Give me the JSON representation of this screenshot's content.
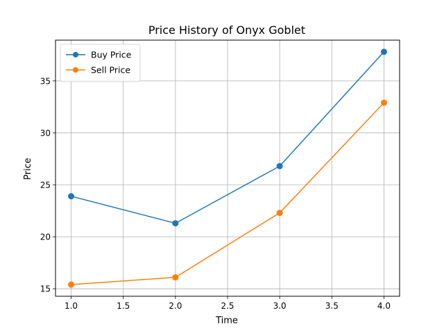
{
  "chart_data": {
    "type": "line",
    "title": "Price History of Onyx Goblet",
    "xlabel": "Time",
    "ylabel": "Price",
    "x": [
      1.0,
      2.0,
      3.0,
      4.0
    ],
    "series": [
      {
        "name": "Buy Price",
        "values": [
          23.9,
          21.3,
          26.8,
          37.8
        ],
        "color": "#1f77b4"
      },
      {
        "name": "Sell Price",
        "values": [
          15.4,
          16.1,
          22.3,
          32.9
        ],
        "color": "#ff7f0e"
      }
    ],
    "xlim": [
      0.85,
      4.15
    ],
    "ylim": [
      14.28,
      38.92
    ],
    "xticks": [
      1.0,
      1.5,
      2.0,
      2.5,
      3.0,
      3.5,
      4.0
    ],
    "xtick_labels": [
      "1.0",
      "1.5",
      "2.0",
      "2.5",
      "3.0",
      "3.5",
      "4.0"
    ],
    "yticks": [
      15,
      20,
      25,
      30,
      35
    ],
    "ytick_labels": [
      "15",
      "20",
      "25",
      "30",
      "35"
    ],
    "grid": true,
    "legend_position": "top-left",
    "marker": "circle"
  }
}
